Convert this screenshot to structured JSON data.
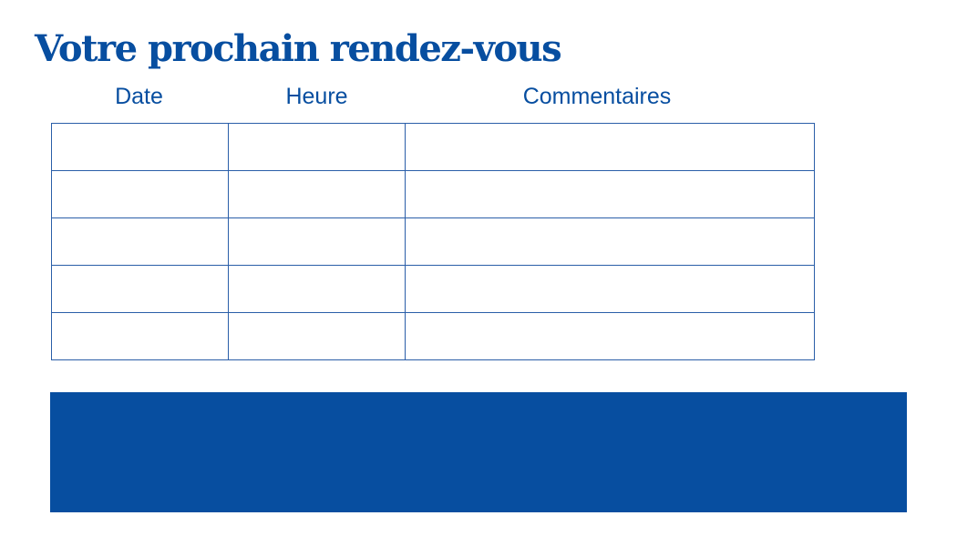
{
  "title": "Votre prochain rendez-vous",
  "columns": [
    "Date",
    "Heure",
    "Commentaires"
  ],
  "rows": [
    [
      "",
      "",
      ""
    ],
    [
      "",
      "",
      ""
    ],
    [
      "",
      "",
      ""
    ],
    [
      "",
      "",
      ""
    ],
    [
      "",
      "",
      ""
    ]
  ],
  "colors": {
    "brand": "#074ea0"
  }
}
